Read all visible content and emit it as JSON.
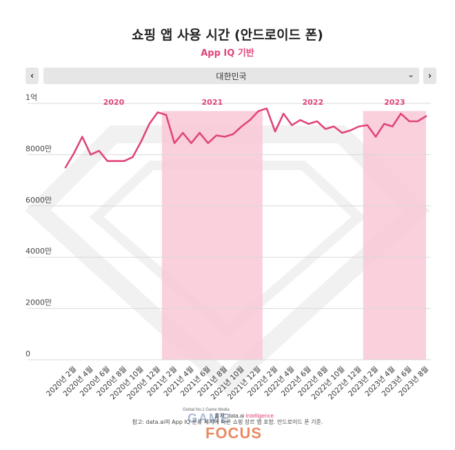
{
  "title": "쇼핑 앱 사용 시간 (안드로이드 폰)",
  "subtitle": "App IQ 기반",
  "region": {
    "selected": "대한민국",
    "prev_icon": "chevron-left-icon",
    "next_icon": "chevron-right-icon"
  },
  "footnote": "참고: data.ai의 App IQ 분류 체계에 따른 쇼핑 장르 앱 포함. 안드로이드 폰 기준.",
  "watermark": {
    "tagline": "Global No.1 Game Media",
    "game": "GAME",
    "focus": "FOCUS",
    "source_prefix": "출처: data.ai",
    "source_suffix": "Intelligence"
  },
  "colors": {
    "line": "#e0447a",
    "band": "#f8c8d6",
    "year_label": "#e0447a",
    "grid": "#d9d9d9"
  },
  "chart_data": {
    "type": "line",
    "ylim": [
      0,
      100000000
    ],
    "y_ticks": [
      {
        "value": 0,
        "label": "0"
      },
      {
        "value": 20000000,
        "label": "2000만"
      },
      {
        "value": 40000000,
        "label": "4000만"
      },
      {
        "value": 60000000,
        "label": "6000만"
      },
      {
        "value": 80000000,
        "label": "8000만"
      },
      {
        "value": 100000000,
        "label": "1억"
      }
    ],
    "x_tick_labels": [
      "2020년 2월",
      "2020년 4월",
      "2020년 6월",
      "2020년 8월",
      "2020년 10월",
      "2020년 12월",
      "2021년 2월",
      "2021년 4월",
      "2021년 6월",
      "2021년 8월",
      "2021년 10월",
      "2021년 12월",
      "2022년 2월",
      "2022년 4월",
      "2022년 6월",
      "2022년 8월",
      "2022년 10월",
      "2022년 12월",
      "2023년 2월",
      "2023년 4월",
      "2023년 6월",
      "2023년 8월"
    ],
    "x": [
      "2020-01",
      "2020-02",
      "2020-03",
      "2020-04",
      "2020-05",
      "2020-06",
      "2020-07",
      "2020-08",
      "2020-09",
      "2020-10",
      "2020-11",
      "2020-12",
      "2021-01",
      "2021-02",
      "2021-03",
      "2021-04",
      "2021-05",
      "2021-06",
      "2021-07",
      "2021-08",
      "2021-09",
      "2021-10",
      "2021-11",
      "2021-12",
      "2022-01",
      "2022-02",
      "2022-03",
      "2022-04",
      "2022-05",
      "2022-06",
      "2022-07",
      "2022-08",
      "2022-09",
      "2022-10",
      "2022-11",
      "2022-12",
      "2023-01",
      "2023-02",
      "2023-03",
      "2023-04",
      "2023-05",
      "2023-06",
      "2023-07",
      "2023-08"
    ],
    "values": [
      75000000,
      80500000,
      87000000,
      80000000,
      81500000,
      77500000,
      77500000,
      77500000,
      79000000,
      85000000,
      92000000,
      96500000,
      95500000,
      84500000,
      88500000,
      84500000,
      88500000,
      84500000,
      87500000,
      87000000,
      88000000,
      91000000,
      93500000,
      97000000,
      98000000,
      89000000,
      96000000,
      91500000,
      93500000,
      92000000,
      93000000,
      90000000,
      91000000,
      88500000,
      89500000,
      91000000,
      91500000,
      87000000,
      92000000,
      91000000,
      96000000,
      93000000,
      93000000,
      95000000
    ],
    "year_bands": [
      {
        "label": "2020",
        "shaded": false
      },
      {
        "label": "2021",
        "shaded": true
      },
      {
        "label": "2022",
        "shaded": false
      },
      {
        "label": "2023",
        "shaded": true
      }
    ]
  }
}
